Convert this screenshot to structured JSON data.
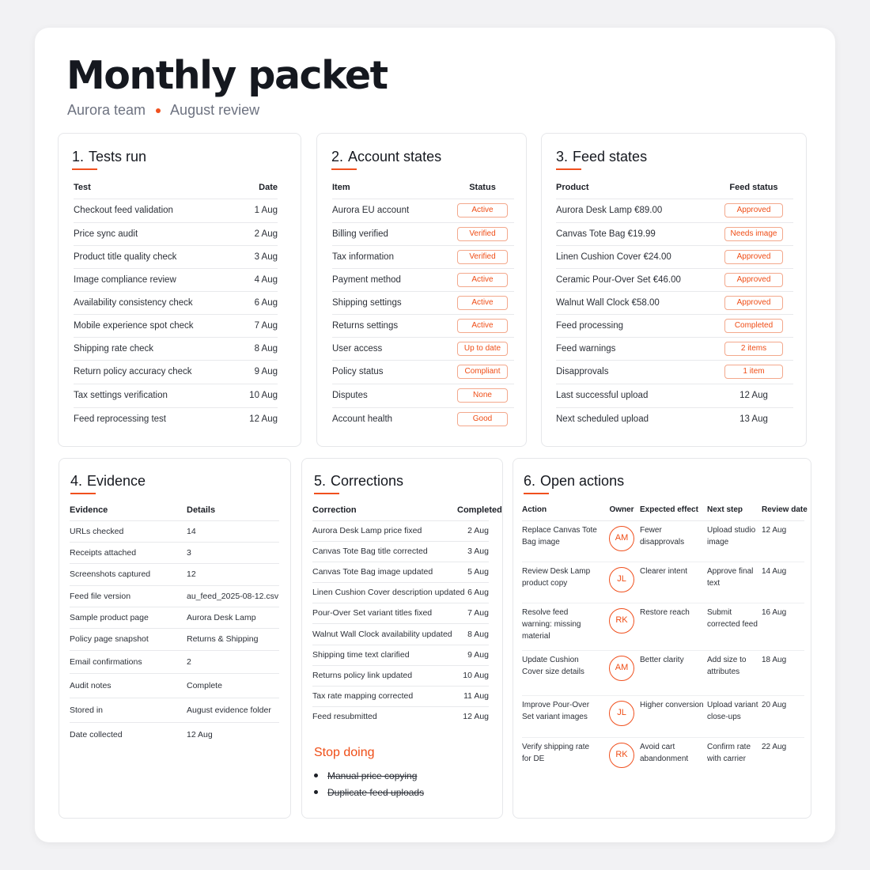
{
  "header": {
    "title": "Monthly packet",
    "team": "Aurora team",
    "review": "August review"
  },
  "tests": {
    "num": "1.",
    "title": "Tests run",
    "columns": [
      "Test",
      "Date"
    ],
    "rows": [
      [
        "Checkout feed validation",
        "1 Aug"
      ],
      [
        "Price sync audit",
        "2 Aug"
      ],
      [
        "Product title quality check",
        "3 Aug"
      ],
      [
        "Image compliance review",
        "4 Aug"
      ],
      [
        "Availability consistency check",
        "6 Aug"
      ],
      [
        "Mobile experience spot check",
        "7 Aug"
      ],
      [
        "Shipping rate check",
        "8 Aug"
      ],
      [
        "Return policy accuracy check",
        "9 Aug"
      ],
      [
        "Tax settings verification",
        "10 Aug"
      ],
      [
        "Feed reprocessing test",
        "12 Aug"
      ]
    ]
  },
  "accounts": {
    "num": "2.",
    "title": "Account states",
    "columns": [
      "Item",
      "Status"
    ],
    "rows": [
      [
        "Aurora EU account",
        "Active"
      ],
      [
        "Billing verified",
        "Verified"
      ],
      [
        "Tax information",
        "Verified"
      ],
      [
        "Payment method",
        "Active"
      ],
      [
        "Shipping settings",
        "Active"
      ],
      [
        "Returns settings",
        "Active"
      ],
      [
        "User access",
        "Up to date"
      ],
      [
        "Policy status",
        "Compliant"
      ],
      [
        "Disputes",
        "None"
      ],
      [
        "Account health",
        "Good"
      ]
    ]
  },
  "feeds": {
    "num": "3.",
    "title": "Feed states",
    "columns": [
      "Product",
      "Feed status"
    ],
    "rows": [
      [
        "Aurora Desk Lamp €89.00",
        "Approved",
        true
      ],
      [
        "Canvas Tote Bag €19.99",
        "Needs image",
        true
      ],
      [
        "Linen Cushion Cover €24.00",
        "Approved",
        true
      ],
      [
        "Ceramic Pour-Over Set €46.00",
        "Approved",
        true
      ],
      [
        "Walnut Wall Clock €58.00",
        "Approved",
        true
      ],
      [
        "Feed processing",
        "Completed",
        true
      ],
      [
        "Feed warnings",
        "2 items",
        true
      ],
      [
        "Disapprovals",
        "1 item",
        true
      ],
      [
        "Last successful upload",
        "12 Aug",
        false
      ],
      [
        "Next scheduled upload",
        "13 Aug",
        false
      ]
    ]
  },
  "evidence": {
    "num": "4.",
    "title": "Evidence",
    "columns": [
      "Evidence",
      "Details"
    ],
    "rows": [
      [
        "URLs checked",
        "14"
      ],
      [
        "Receipts attached",
        "3"
      ],
      [
        "Screenshots captured",
        "12"
      ],
      [
        "Feed file version",
        "au_feed_2025-08-12.csv"
      ],
      [
        "Sample product page",
        "Aurora Desk Lamp"
      ],
      [
        "Policy page snapshot",
        "Returns & Shipping"
      ],
      [
        "Email confirmations",
        "2"
      ],
      [
        "Audit notes",
        "Complete"
      ],
      [
        "Stored in",
        "August evidence folder"
      ],
      [
        "Date collected",
        "12 Aug"
      ]
    ]
  },
  "corrections": {
    "num": "5.",
    "title": "Corrections",
    "columns": [
      "Correction",
      "Completed"
    ],
    "rows": [
      [
        "Aurora Desk Lamp price fixed",
        "2 Aug"
      ],
      [
        "Canvas Tote Bag title corrected",
        "3 Aug"
      ],
      [
        "Canvas Tote Bag image updated",
        "5 Aug"
      ],
      [
        "Linen Cushion Cover description updated",
        "6 Aug"
      ],
      [
        "Pour-Over Set variant titles fixed",
        "7 Aug"
      ],
      [
        "Walnut Wall Clock availability updated",
        "8 Aug"
      ],
      [
        "Shipping time text clarified",
        "9 Aug"
      ],
      [
        "Returns policy link updated",
        "10 Aug"
      ],
      [
        "Tax rate mapping corrected",
        "11 Aug"
      ],
      [
        "Feed resubmitted",
        "12 Aug"
      ]
    ],
    "stop_title": "Stop doing",
    "stop_items": [
      "Manual price copying",
      "Duplicate feed uploads"
    ]
  },
  "actions": {
    "num": "6.",
    "title": "Open actions",
    "columns": [
      "Action",
      "Owner",
      "Expected effect",
      "Next step",
      "Review date"
    ],
    "rows": [
      [
        "Replace Canvas Tote Bag image",
        "AM",
        "Fewer disapprovals",
        "Upload studio image",
        "12 Aug"
      ],
      [
        "Review Desk Lamp product copy",
        "JL",
        "Clearer intent",
        "Approve final text",
        "14 Aug"
      ],
      [
        "Resolve feed warning: missing material",
        "RK",
        "Restore reach",
        "Submit corrected feed",
        "16 Aug"
      ],
      [
        "Update Cushion Cover size details",
        "AM",
        "Better clarity",
        "Add size to attributes",
        "18 Aug"
      ],
      [
        "Improve Pour-Over Set variant images",
        "JL",
        "Higher conversion",
        "Upload variant close-ups",
        "20 Aug"
      ],
      [
        "Verify shipping rate for DE",
        "RK",
        "Avoid cart abandonment",
        "Confirm rate with carrier",
        "22 Aug"
      ]
    ]
  },
  "colors": {
    "accent": "#f0501e",
    "badge_border": "#f3a88c",
    "text": "#1c1f26"
  }
}
